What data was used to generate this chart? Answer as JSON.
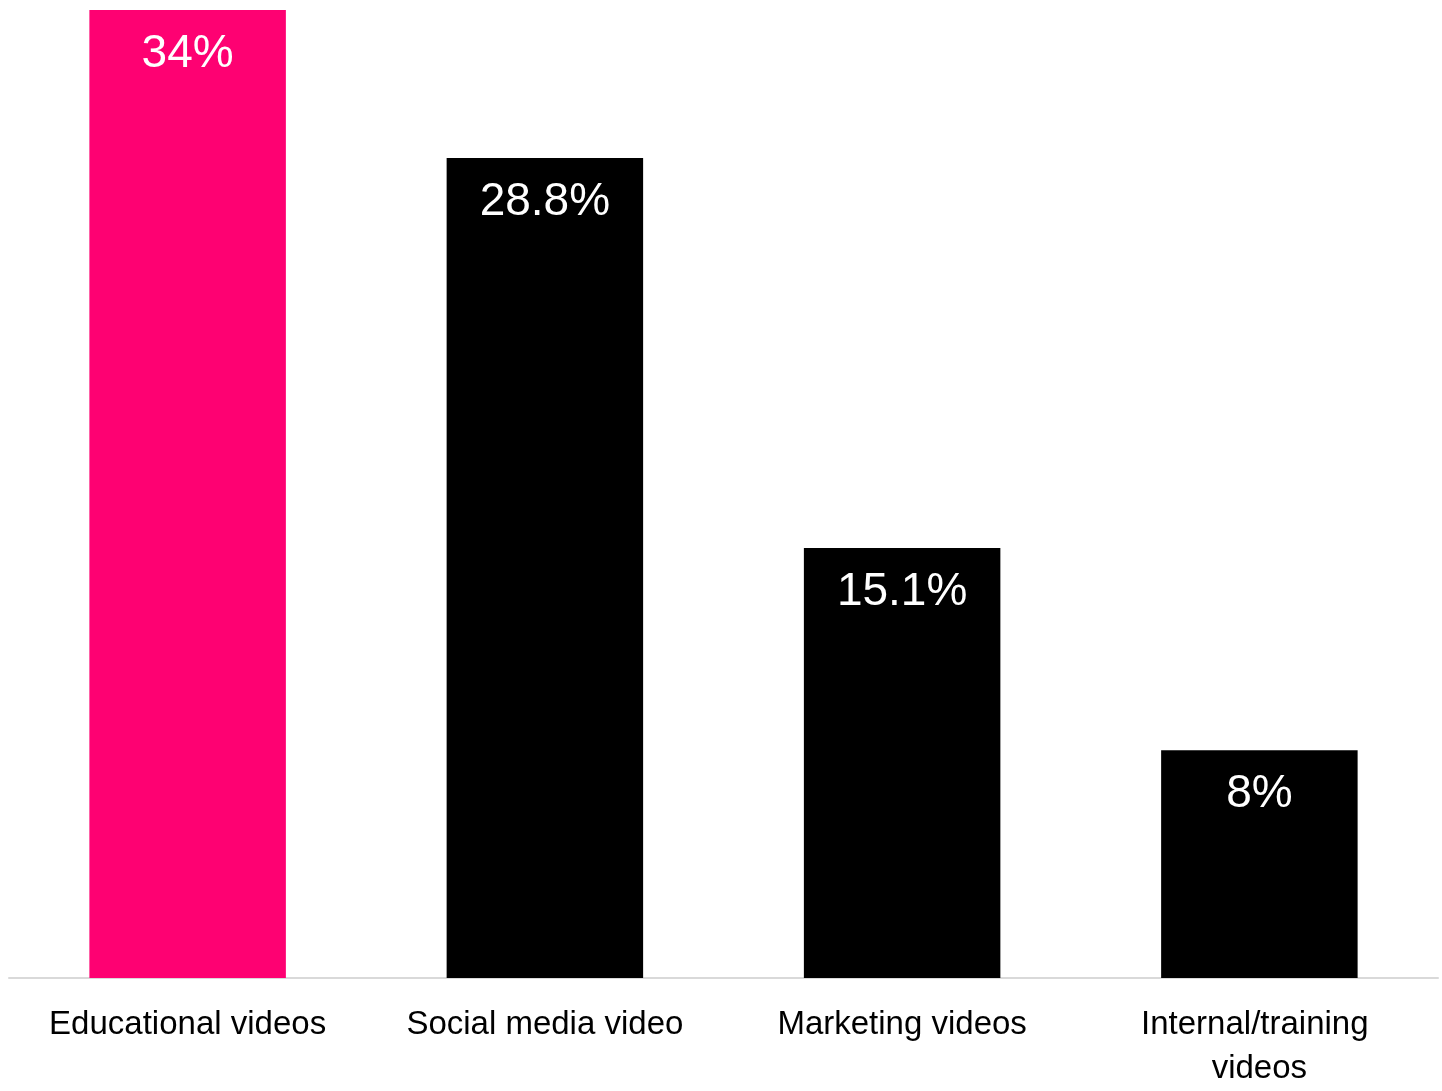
{
  "chart_data": {
    "type": "bar",
    "categories": [
      "Educational videos",
      "Social media video",
      "Marketing videos",
      "Internal/training videos"
    ],
    "values": [
      34,
      28.8,
      15.1,
      8
    ],
    "colors": [
      "#fe0172",
      "#000000",
      "#000000",
      "#000000"
    ],
    "value_labels": [
      "34%",
      "28.8%",
      "15.1%",
      "8%"
    ],
    "tick_labels": "x"
  }
}
